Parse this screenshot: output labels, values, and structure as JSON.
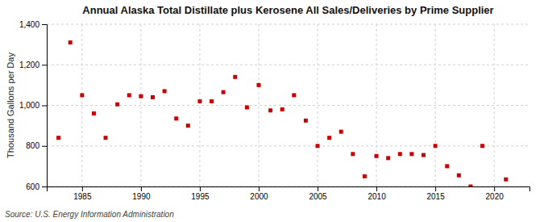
{
  "chart_data": {
    "type": "scatter",
    "title": "Annual Alaska Total Distillate plus Kerosene All Sales/Deliveries by Prime Supplier",
    "ylabel": "Thousand Gallons per Day",
    "annotations": [
      "Source: U.S. Energy Information Administration"
    ],
    "x": [
      1983,
      1984,
      1985,
      1986,
      1987,
      1988,
      1989,
      1990,
      1991,
      1992,
      1993,
      1994,
      1995,
      1996,
      1997,
      1998,
      1999,
      2000,
      2001,
      2002,
      2003,
      2004,
      2005,
      2006,
      2007,
      2008,
      2009,
      2010,
      2011,
      2012,
      2013,
      2014,
      2015,
      2016,
      2017,
      2018,
      2019,
      2021
    ],
    "values": [
      840,
      1310,
      1050,
      960,
      840,
      1005,
      1050,
      1045,
      1040,
      1070,
      935,
      900,
      1020,
      1020,
      1065,
      1140,
      990,
      1100,
      975,
      980,
      1050,
      925,
      800,
      840,
      870,
      760,
      650,
      750,
      740,
      760,
      760,
      755,
      800,
      700,
      655,
      600,
      800,
      635
    ],
    "color": "#cc0000",
    "marker": "square",
    "xlim": [
      1982,
      2023
    ],
    "xticks": [
      1985,
      1990,
      1995,
      2000,
      2005,
      2010,
      2015,
      2020
    ],
    "ylim": [
      600,
      1400
    ],
    "yticks": [
      600,
      800,
      {
        "value": 1000,
        "label": "1,000"
      },
      {
        "value": 1200,
        "label": "1,200"
      },
      {
        "value": 1400,
        "label": "1,400"
      }
    ],
    "grid": true
  }
}
